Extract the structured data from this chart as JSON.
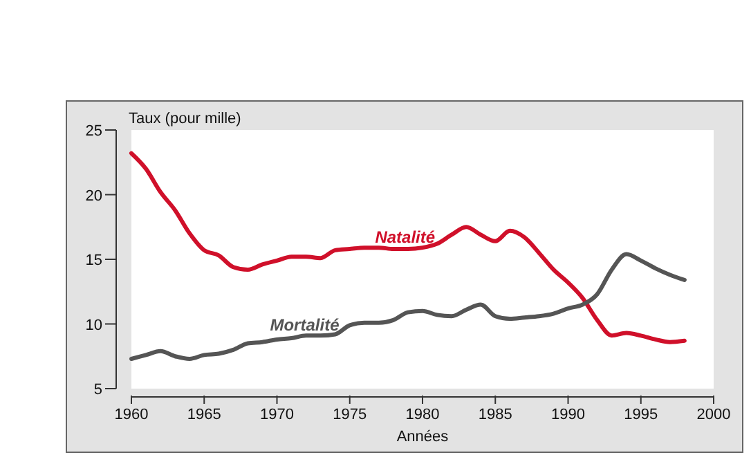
{
  "chart_data": {
    "type": "line",
    "xlabel": "Années",
    "ylabel": "Taux (pour mille)",
    "x": [
      1960,
      1961,
      1962,
      1963,
      1964,
      1965,
      1966,
      1967,
      1968,
      1969,
      1970,
      1971,
      1972,
      1973,
      1974,
      1975,
      1976,
      1977,
      1978,
      1979,
      1980,
      1981,
      1982,
      1983,
      1984,
      1985,
      1986,
      1987,
      1988,
      1989,
      1990,
      1991,
      1992,
      1993,
      1994,
      1995,
      1996,
      1997,
      1998
    ],
    "series": [
      {
        "name": "Natalité",
        "color": "#d0102a",
        "values": [
          23.2,
          22,
          20.2,
          18.8,
          17,
          15.7,
          15.3,
          14.4,
          14.2,
          14.6,
          14.9,
          15.2,
          15.2,
          15.1,
          15.7,
          15.8,
          15.9,
          15.9,
          15.8,
          15.8,
          15.9,
          16.2,
          16.9,
          17.5,
          16.9,
          16.4,
          17.2,
          16.7,
          15.5,
          14.2,
          13.2,
          12,
          10.3,
          9.1,
          9.3,
          9.1,
          8.8,
          8.6,
          8.7
        ]
      },
      {
        "name": "Mortalité",
        "color": "#555555",
        "values": [
          7.3,
          7.6,
          7.9,
          7.5,
          7.3,
          7.6,
          7.7,
          8,
          8.5,
          8.6,
          8.8,
          8.9,
          9.1,
          9.1,
          9.2,
          9.9,
          10.1,
          10.1,
          10.3,
          10.9,
          11,
          10.7,
          10.6,
          11.1,
          11.5,
          10.6,
          10.4,
          10.5,
          10.6,
          10.8,
          11.2,
          11.5,
          12.3,
          14.2,
          15.4,
          14.9,
          14.3,
          13.8,
          13.4
        ]
      }
    ],
    "xlim": [
      1960,
      2000
    ],
    "xticks": [
      1960,
      1965,
      1970,
      1975,
      1980,
      1985,
      1990,
      1995,
      2000
    ],
    "ylim": [
      5,
      25
    ],
    "yticks": [
      5,
      10,
      15,
      20,
      25
    ],
    "grid": false,
    "marker": "none",
    "line_style": "solid"
  }
}
